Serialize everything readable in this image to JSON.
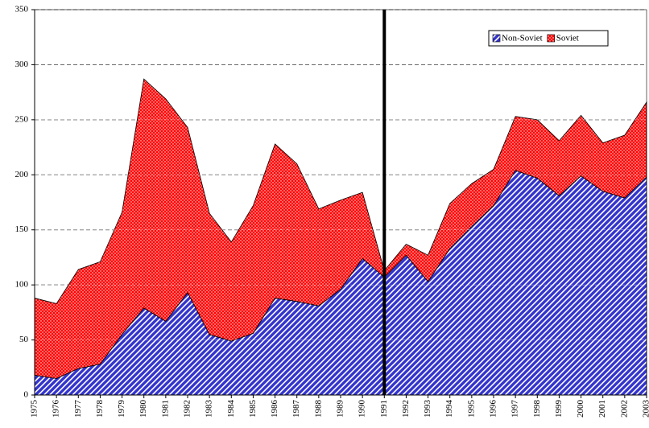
{
  "chart_data": {
    "type": "stacked-area",
    "categories": [
      "1975",
      "1976",
      "1977",
      "1978",
      "1979",
      "1980",
      "1981",
      "1982",
      "1983",
      "1984",
      "1985",
      "1986",
      "1987",
      "1988",
      "1989",
      "1990",
      "1991",
      "1992",
      "1993",
      "1994",
      "1995",
      "1996",
      "1997",
      "1998",
      "1999",
      "2000",
      "2001",
      "2002",
      "2003"
    ],
    "series": [
      {
        "name": "Non-Soviet",
        "color": "#3333cc",
        "values": [
          18,
          15,
          24,
          28,
          55,
          79,
          67,
          93,
          55,
          49,
          56,
          88,
          85,
          81,
          96,
          124,
          107,
          127,
          103,
          133,
          153,
          172,
          204,
          197,
          181,
          199,
          185,
          179,
          198
        ]
      },
      {
        "name": "Soviet",
        "color": "#ff0000",
        "values": [
          70,
          68,
          90,
          93,
          111,
          208,
          202,
          150,
          110,
          90,
          116,
          140,
          125,
          88,
          81,
          60,
          6,
          10,
          24,
          41,
          39,
          33,
          49,
          53,
          50,
          55,
          44,
          57,
          68
        ]
      }
    ],
    "ylim": [
      0,
      350
    ],
    "yticks": [
      0,
      50,
      100,
      150,
      200,
      250,
      300,
      350
    ],
    "grid": true,
    "legend": "upper-right",
    "vline": "1991"
  }
}
